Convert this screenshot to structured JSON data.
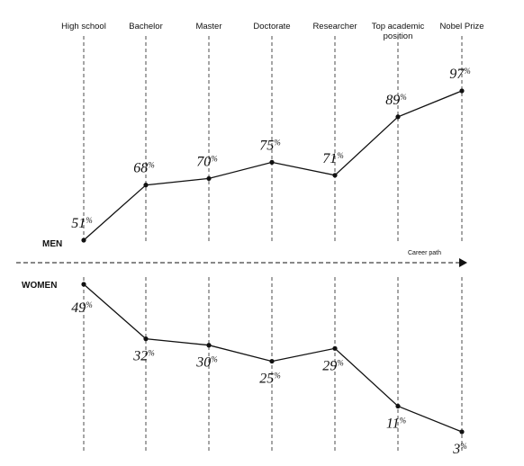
{
  "chart_data": {
    "type": "line",
    "categories": [
      "High school",
      "Bachelor",
      "Master",
      "Doctorate",
      "Researcher",
      "Top academic position",
      "Nobel Prize"
    ],
    "series": [
      {
        "name": "MEN",
        "values": [
          51,
          68,
          70,
          75,
          71,
          89,
          97
        ]
      },
      {
        "name": "WOMEN",
        "values": [
          49,
          32,
          30,
          25,
          29,
          11,
          3
        ]
      }
    ],
    "value_suffix": "%",
    "xlabel": "Career path",
    "ylabel": "",
    "ylim": [
      0,
      100
    ],
    "grid": false,
    "legend": "left"
  }
}
